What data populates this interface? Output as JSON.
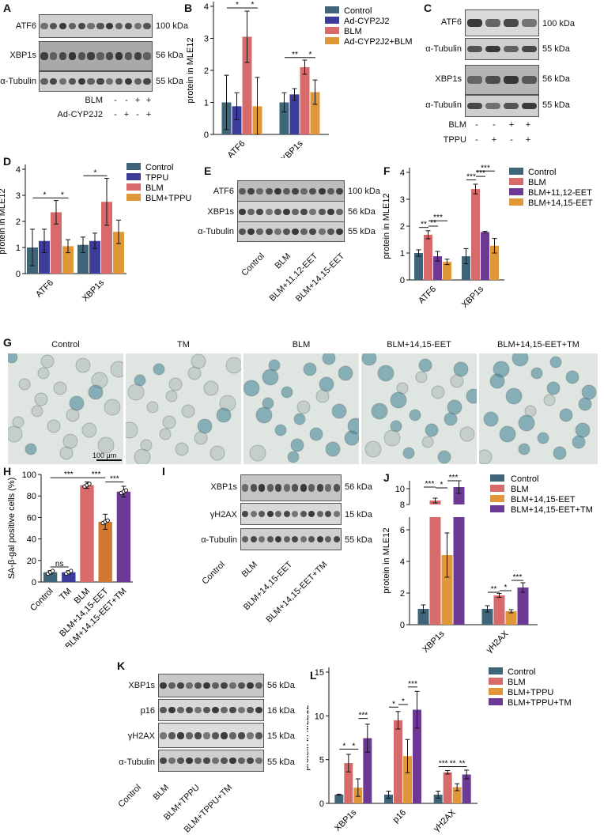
{
  "panel_letters": [
    "A",
    "B",
    "C",
    "D",
    "E",
    "F",
    "G",
    "H",
    "I",
    "J",
    "K",
    "L"
  ],
  "colors": {
    "c_blue_grey": "#3f6678",
    "c_indigo": "#3c3c9a",
    "c_coral": "#d76a6a",
    "c_orange": "#e0973a",
    "c_purple": "#6c3a95",
    "c_dkorange": "#d2782e"
  },
  "panelA": {
    "rows": [
      {
        "name": "ATF6",
        "kda": "100 kDa"
      },
      {
        "name": "XBP1s",
        "kda": "56 kDa"
      },
      {
        "name": "α-Tubulin",
        "kda": "55 kDa"
      }
    ],
    "conds": [
      {
        "name": "BLM",
        "signs": [
          "-",
          "-",
          "+",
          "+"
        ]
      },
      {
        "name": "Ad-CYP2J2",
        "signs": [
          "-",
          "+",
          "-",
          "+"
        ]
      }
    ]
  },
  "panelC": {
    "rows": [
      {
        "name": "ATF6",
        "kda": "100 kDa"
      },
      {
        "name": "α-Tubulin",
        "kda": "55 kDa"
      },
      {
        "name": "XBP1s",
        "kda": "56 kDa"
      },
      {
        "name": "α-Tubulin",
        "kda": "55 kDa"
      }
    ],
    "conds": [
      {
        "name": "BLM",
        "signs": [
          "-",
          "-",
          "+",
          "+"
        ]
      },
      {
        "name": "TPPU",
        "signs": [
          "-",
          "+",
          "-",
          "+"
        ]
      }
    ]
  },
  "panelE": {
    "rows": [
      {
        "name": "ATF6",
        "kda": "100 kDa"
      },
      {
        "name": "XBP1s",
        "kda": "56 kDa"
      },
      {
        "name": "α-Tubulin",
        "kda": "55 kDa"
      }
    ],
    "groups": [
      "Control",
      "BLM",
      "BLM+11,12-EET",
      "BLM+14,15-EET"
    ]
  },
  "panelG": {
    "titles": [
      "Control",
      "TM",
      "BLM",
      "BLM+14,15-EET",
      "BLM+14,15-EET+TM"
    ],
    "scalebar": "100 μm"
  },
  "panelI": {
    "rows": [
      {
        "name": "XBP1s",
        "kda": "56 kDa"
      },
      {
        "name": "γH2AX",
        "kda": "15 kDa"
      },
      {
        "name": "α-Tubulin",
        "kda": "55 kDa"
      }
    ],
    "groups": [
      "Control",
      "BLM",
      "BLM+14,15-EET",
      "BLM+14,15-EET+TM"
    ]
  },
  "panelK": {
    "rows": [
      {
        "name": "XBP1s",
        "kda": "56 kDa"
      },
      {
        "name": "p16",
        "kda": "16 kDa"
      },
      {
        "name": "γH2AX",
        "kda": "15 kDa"
      },
      {
        "name": "α-Tubulin",
        "kda": "55 kDa"
      }
    ],
    "groups": [
      "Control",
      "BLM",
      "BLM+TPPU",
      "BLM+TPPU+TM"
    ]
  },
  "chart_data": [
    {
      "id": "B",
      "type": "bar",
      "ylabel": "protein in MLE12",
      "ylim": [
        0,
        4
      ],
      "yticks": [
        0,
        1,
        2,
        3,
        4
      ],
      "categories": [
        "ATF6",
        "XBP1s"
      ],
      "series": [
        {
          "name": "Control",
          "color": "#3f6678",
          "values": [
            1.0,
            1.0
          ],
          "errors": [
            0.85,
            0.3
          ]
        },
        {
          "name": "Ad-CYP2J2",
          "color": "#3c3c9a",
          "values": [
            0.88,
            1.25
          ],
          "errors": [
            0.42,
            0.18
          ]
        },
        {
          "name": "BLM",
          "color": "#d76a6a",
          "values": [
            3.05,
            2.1
          ],
          "errors": [
            0.8,
            0.22
          ]
        },
        {
          "name": "Ad-CYP2J2+BLM",
          "color": "#e0973a",
          "values": [
            0.88,
            1.32
          ],
          "errors": [
            0.9,
            0.38
          ]
        }
      ],
      "sig": [
        {
          "cat": 0,
          "from": 0,
          "to": 2,
          "label": "*",
          "y": 3.95
        },
        {
          "cat": 0,
          "from": 2,
          "to": 3,
          "label": "*",
          "y": 3.95
        },
        {
          "cat": 1,
          "from": 0,
          "to": 2,
          "label": "**",
          "y": 2.4
        },
        {
          "cat": 1,
          "from": 2,
          "to": 3,
          "label": "*",
          "y": 2.4
        }
      ]
    },
    {
      "id": "D",
      "type": "bar",
      "ylabel": "protein in MLE12",
      "ylim": [
        0,
        4
      ],
      "yticks": [
        0,
        1,
        2,
        3,
        4
      ],
      "categories": [
        "ATF6",
        "XBP1s"
      ],
      "series": [
        {
          "name": "Control",
          "color": "#3f6678",
          "values": [
            1.0,
            1.1
          ],
          "errors": [
            0.7,
            0.3
          ]
        },
        {
          "name": "TPPU",
          "color": "#3c3c9a",
          "values": [
            1.25,
            1.25
          ],
          "errors": [
            0.45,
            0.3
          ]
        },
        {
          "name": "BLM",
          "color": "#d76a6a",
          "values": [
            2.35,
            2.75
          ],
          "errors": [
            0.45,
            0.9
          ]
        },
        {
          "name": "BLM+TPPU",
          "color": "#e0973a",
          "values": [
            1.05,
            1.6
          ],
          "errors": [
            0.25,
            0.45
          ]
        }
      ],
      "sig": [
        {
          "cat": 0,
          "from": 0,
          "to": 2,
          "label": "*",
          "y": 2.9
        },
        {
          "cat": 0,
          "from": 2,
          "to": 3,
          "label": "*",
          "y": 2.9
        },
        {
          "cat": 1,
          "from": 0,
          "to": 2,
          "label": "*",
          "y": 3.75
        }
      ]
    },
    {
      "id": "F",
      "type": "bar",
      "ylabel": "protein in MLE12",
      "ylim": [
        0,
        4
      ],
      "yticks": [
        0,
        1,
        2,
        3,
        4
      ],
      "categories": [
        "ATF6",
        "XBP1s"
      ],
      "series": [
        {
          "name": "Control",
          "color": "#3f6678",
          "values": [
            1.0,
            0.88
          ],
          "errors": [
            0.12,
            0.28
          ]
        },
        {
          "name": "BLM",
          "color": "#d76a6a",
          "values": [
            1.68,
            3.38
          ],
          "errors": [
            0.15,
            0.18
          ]
        },
        {
          "name": "BLM+11,12-EET",
          "color": "#6c3a95",
          "values": [
            0.88,
            1.78
          ],
          "errors": [
            0.18,
            0.03
          ]
        },
        {
          "name": "BLM+14,15-EET",
          "color": "#e0973a",
          "values": [
            0.67,
            1.27
          ],
          "errors": [
            0.1,
            0.27
          ]
        }
      ],
      "sig": [
        {
          "cat": 0,
          "from": 0,
          "to": 1,
          "label": "**",
          "y": 1.95
        },
        {
          "cat": 0,
          "from": 1,
          "to": 2,
          "label": "**",
          "y": 2.0
        },
        {
          "cat": 0,
          "from": 1,
          "to": 3,
          "label": "***",
          "y": 2.2
        },
        {
          "cat": 1,
          "from": 0,
          "to": 1,
          "label": "***",
          "y": 3.72
        },
        {
          "cat": 1,
          "from": 1,
          "to": 2,
          "label": "***",
          "y": 3.85
        },
        {
          "cat": 1,
          "from": 1,
          "to": 3,
          "label": "***",
          "y": 4.05
        }
      ]
    },
    {
      "id": "H",
      "type": "bar",
      "ylabel": "SA-β-gal positive cells (%)",
      "ylim": [
        0,
        100
      ],
      "yticks": [
        0,
        20,
        40,
        60,
        80,
        100
      ],
      "categories": [
        "Control",
        "TM",
        "BLM",
        "BLM+14,15-EET",
        "BLM+14,15-EET+TM"
      ],
      "colors": [
        "#3f6678",
        "#3c3c9a",
        "#d76a6a",
        "#d2782e",
        "#6c3a95"
      ],
      "values": [
        9,
        9,
        90,
        56,
        84
      ],
      "errors": [
        1.5,
        1.5,
        3,
        7,
        5
      ],
      "sig": [
        {
          "from": 0,
          "to": 1,
          "label": "ns",
          "y": 14
        },
        {
          "from": 0,
          "to": 2,
          "label": "***",
          "y": 97
        },
        {
          "from": 2,
          "to": 3,
          "label": "***",
          "y": 97
        },
        {
          "from": 3,
          "to": 4,
          "label": "***",
          "y": 93
        }
      ]
    },
    {
      "id": "J",
      "type": "bar",
      "ylabel": "protein in MLE12",
      "ylim": [
        0,
        10
      ],
      "yticks": [
        0,
        2,
        4,
        6,
        8,
        10
      ],
      "broken_axis": true,
      "categories": [
        "XBP1s",
        "γH2AX"
      ],
      "series": [
        {
          "name": "Control",
          "color": "#3f6678",
          "values": [
            1.0,
            1.0
          ],
          "errors": [
            0.25,
            0.2
          ]
        },
        {
          "name": "BLM",
          "color": "#d76a6a",
          "values": [
            8.5,
            1.85
          ],
          "errors": [
            0.3,
            0.12
          ]
        },
        {
          "name": "BLM+14,15-EET",
          "color": "#e0973a",
          "values": [
            4.4,
            0.85
          ],
          "errors": [
            1.4,
            0.1
          ]
        },
        {
          "name": "BLM+14,15-EET+TM",
          "color": "#6c3a95",
          "values": [
            10.2,
            2.35
          ],
          "errors": [
            0.8,
            0.3
          ]
        }
      ],
      "sig": [
        {
          "cat": 0,
          "from": 0,
          "to": 1,
          "label": "***",
          "y": 10.2
        },
        {
          "cat": 0,
          "from": 1,
          "to": 2,
          "label": "*",
          "y": 10.1
        },
        {
          "cat": 0,
          "from": 2,
          "to": 3,
          "label": "***",
          "y": 11.0
        },
        {
          "cat": 1,
          "from": 0,
          "to": 1,
          "label": "**",
          "y": 2.05
        },
        {
          "cat": 1,
          "from": 1,
          "to": 2,
          "label": "*",
          "y": 2.15
        },
        {
          "cat": 1,
          "from": 2,
          "to": 3,
          "label": "***",
          "y": 2.8
        }
      ]
    },
    {
      "id": "L",
      "type": "bar",
      "ylabel": "protein in MLE12",
      "ylim": [
        0,
        15
      ],
      "yticks": [
        0,
        5,
        10,
        15
      ],
      "categories": [
        "XBP1s",
        "p16",
        "γH2AX"
      ],
      "series": [
        {
          "name": "Control",
          "color": "#3f6678",
          "values": [
            1.0,
            1.0,
            1.0
          ],
          "errors": [
            0.05,
            0.4,
            0.4
          ]
        },
        {
          "name": "BLM",
          "color": "#d76a6a",
          "values": [
            4.6,
            9.5,
            3.55
          ],
          "errors": [
            1.0,
            1.0,
            0.2
          ]
        },
        {
          "name": "BLM+TPPU",
          "color": "#e0973a",
          "values": [
            1.8,
            5.4,
            1.85
          ],
          "errors": [
            1.0,
            1.9,
            0.4
          ]
        },
        {
          "name": "BLM+TPPU+TM",
          "color": "#6c3a95",
          "values": [
            7.45,
            10.7,
            3.3
          ],
          "errors": [
            1.6,
            2.1,
            0.5
          ]
        }
      ],
      "sig": [
        {
          "cat": 0,
          "from": 0,
          "to": 1,
          "label": "*",
          "y": 6.2
        },
        {
          "cat": 0,
          "from": 1,
          "to": 2,
          "label": "*",
          "y": 6.2
        },
        {
          "cat": 0,
          "from": 2,
          "to": 3,
          "label": "***",
          "y": 9.7
        },
        {
          "cat": 1,
          "from": 0,
          "to": 1,
          "label": "*",
          "y": 11.0
        },
        {
          "cat": 1,
          "from": 1,
          "to": 2,
          "label": "*",
          "y": 11.3
        },
        {
          "cat": 1,
          "from": 2,
          "to": 3,
          "label": "***",
          "y": 13.3
        },
        {
          "cat": 2,
          "from": 0,
          "to": 1,
          "label": "***",
          "y": 4.2
        },
        {
          "cat": 2,
          "from": 1,
          "to": 2,
          "label": "**",
          "y": 4.2
        },
        {
          "cat": 2,
          "from": 2,
          "to": 3,
          "label": "**",
          "y": 4.2
        }
      ]
    }
  ]
}
